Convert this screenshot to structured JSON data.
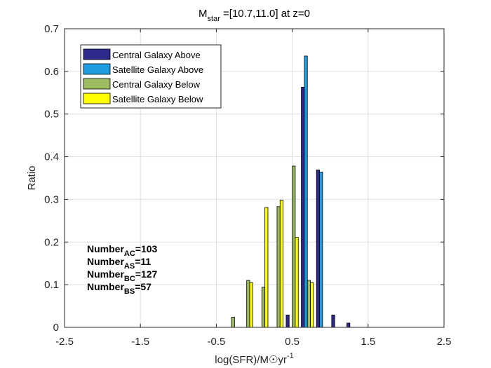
{
  "chart_data": {
    "type": "bar",
    "title_main": "M",
    "title_sub": "star",
    "title_rest": " =[10.7,11.0] at z=0",
    "xlabel_main": "log(SFR)/M☉yr",
    "xlabel_sup": "-1",
    "ylabel": "Ratio",
    "xlim": [
      -2.5,
      2.5
    ],
    "ylim": [
      0,
      0.7
    ],
    "xticks": [
      -2.5,
      -1.5,
      -0.5,
      0.5,
      1.5,
      2.5
    ],
    "xtick_labels": [
      "-2.5",
      "-1.5",
      "-0.5",
      "0.5",
      "1.5",
      "2.5"
    ],
    "yticks": [
      0,
      0.1,
      0.2,
      0.3,
      0.4,
      0.5,
      0.6,
      0.7
    ],
    "ytick_labels": [
      "0",
      "0.1",
      "0.2",
      "0.3",
      "0.4",
      "0.5",
      "0.6",
      "0.7"
    ],
    "grid": true,
    "legend_position": "top-left",
    "bin_width": 0.2,
    "bin_centers": [
      -0.3,
      -0.1,
      0.1,
      0.3,
      0.5,
      0.7,
      0.9,
      1.1,
      1.3
    ],
    "series": [
      {
        "name": "Central Galaxy Above",
        "color": "#2e2a8c",
        "values": [
          0,
          0,
          0,
          0,
          0.029,
          0.563,
          0.369,
          0.029,
          0.01
        ]
      },
      {
        "name": "Satellite Galaxy Above",
        "color": "#1e9ee0",
        "values": [
          0,
          0,
          0,
          0,
          0,
          0.636,
          0.364,
          0,
          0
        ]
      },
      {
        "name": "Central Galaxy Below",
        "color": "#9dbb61",
        "values": [
          0.024,
          0.11,
          0.094,
          0.283,
          0.378,
          0.11,
          0,
          0,
          0
        ]
      },
      {
        "name": "Satellite Galaxy Below",
        "color": "#ffff00",
        "values": [
          0,
          0.105,
          0.281,
          0.298,
          0.211,
          0.105,
          0,
          0,
          0
        ]
      }
    ],
    "annotations": [
      {
        "main": "Number",
        "sub": "AC",
        "rest": "=103"
      },
      {
        "main": "Number",
        "sub": "AS",
        "rest": "=11"
      },
      {
        "main": "Number",
        "sub": "BC",
        "rest": "=127"
      },
      {
        "main": "Number",
        "sub": "BS",
        "rest": "=57"
      }
    ]
  }
}
